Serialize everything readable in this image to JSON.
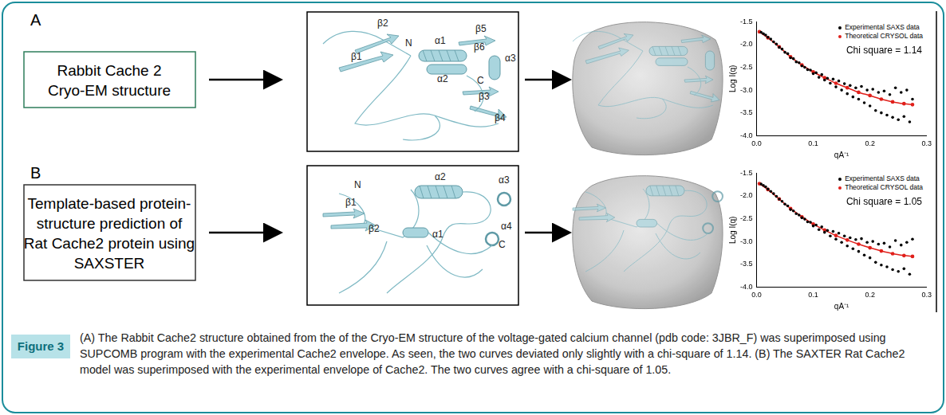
{
  "panels": [
    {
      "label": "A",
      "box_lines": [
        "Rabbit Cache 2",
        "Cryo-EM structure"
      ],
      "structure_labels": [
        "β2",
        "N",
        "β1",
        "α1",
        "β5",
        "β6",
        "α3",
        "α2",
        "C",
        "β3",
        "β4"
      ]
    },
    {
      "label": "B",
      "box_lines": [
        "Template-based protein-",
        "structure prediction of",
        "Rat Cache2 protein using",
        "SAXSTER"
      ],
      "structure_labels": [
        "N",
        "β1",
        "β2",
        "α2",
        "α1",
        "α3",
        "α4",
        "C"
      ]
    }
  ],
  "chart_data": [
    {
      "type": "scatter",
      "x_label": "qA⁻¹",
      "y_label": "Log I(q)",
      "xlim": [
        0,
        0.3
      ],
      "xticks": [
        {
          "value": 0,
          "label": "0.0"
        },
        0.1,
        0.2,
        0.3
      ],
      "ylim": [
        -4,
        -1.5
      ],
      "yticks": [
        {
          "value": -4,
          "label": "-4.0"
        },
        -3.5,
        {
          "value": -3,
          "label": "-3.0"
        },
        -2.5,
        {
          "value": -2,
          "label": "-2.0"
        },
        -1.5
      ],
      "grid": false,
      "legend": "upper right",
      "annotations": [
        "Chi square = 1.14"
      ],
      "series": [
        {
          "name": "Experimental SAXS data",
          "type": "scatter",
          "color": "#000000",
          "marker": "circle",
          "x": [
            0.008,
            0.012,
            0.016,
            0.02,
            0.025,
            0.03,
            0.035,
            0.04,
            0.045,
            0.05,
            0.055,
            0.06,
            0.065,
            0.07,
            0.075,
            0.08,
            0.085,
            0.09,
            0.095,
            0.1,
            0.105,
            0.11,
            0.115,
            0.12,
            0.125,
            0.13,
            0.135,
            0.14,
            0.145,
            0.15,
            0.155,
            0.16,
            0.165,
            0.17,
            0.175,
            0.18,
            0.185,
            0.19,
            0.195,
            0.2,
            0.205,
            0.21,
            0.215,
            0.22,
            0.225,
            0.23,
            0.235,
            0.24,
            0.245,
            0.25,
            0.255,
            0.26,
            0.265,
            0.27,
            0.275
          ],
          "values": [
            -1.73,
            -1.76,
            -1.79,
            -1.84,
            -1.88,
            -1.94,
            -1.99,
            -2.06,
            -2.1,
            -2.17,
            -2.2,
            -2.29,
            -2.31,
            -2.38,
            -2.4,
            -2.47,
            -2.5,
            -2.55,
            -2.56,
            -2.64,
            -2.62,
            -2.72,
            -2.66,
            -2.78,
            -2.74,
            -2.85,
            -2.76,
            -2.93,
            -2.8,
            -3.0,
            -2.86,
            -3.08,
            -2.9,
            -3.15,
            -2.95,
            -3.2,
            -2.92,
            -3.28,
            -3.0,
            -3.35,
            -2.98,
            -3.45,
            -3.05,
            -3.5,
            -3.02,
            -3.55,
            -3.1,
            -3.6,
            -2.95,
            -3.65,
            -3.05,
            -3.58,
            -3.0,
            -3.7,
            -3.2
          ]
        },
        {
          "name": "Theoretical CRYSOL data",
          "type": "line",
          "color": "#e0201b",
          "marker": "circle",
          "line_style": "solid",
          "x": [
            0.005,
            0.02,
            0.04,
            0.06,
            0.08,
            0.1,
            0.12,
            0.14,
            0.16,
            0.18,
            0.2,
            0.22,
            0.24,
            0.26,
            0.275
          ],
          "values": [
            -1.72,
            -1.85,
            -2.05,
            -2.27,
            -2.45,
            -2.6,
            -2.73,
            -2.85,
            -2.95,
            -3.05,
            -3.12,
            -3.2,
            -3.26,
            -3.3,
            -3.32
          ]
        }
      ]
    },
    {
      "type": "scatter",
      "x_label": "qA⁻¹",
      "y_label": "Log I(q)",
      "xlim": [
        0,
        0.3
      ],
      "xticks": [
        {
          "value": 0,
          "label": "0.0"
        },
        0.1,
        0.2,
        0.3
      ],
      "ylim": [
        -4,
        -1.5
      ],
      "yticks": [
        {
          "value": -4,
          "label": "-4.0"
        },
        -3.5,
        {
          "value": -3,
          "label": "-3.0"
        },
        -2.5,
        {
          "value": -2,
          "label": "-2.0"
        },
        -1.5
      ],
      "grid": false,
      "legend": "upper right",
      "annotations": [
        "Chi square = 1.05"
      ],
      "series": [
        {
          "name": "Experimental SAXS data",
          "type": "scatter",
          "color": "#000000",
          "marker": "circle",
          "x": [
            0.008,
            0.012,
            0.016,
            0.02,
            0.025,
            0.03,
            0.035,
            0.04,
            0.045,
            0.05,
            0.055,
            0.06,
            0.065,
            0.07,
            0.075,
            0.08,
            0.085,
            0.09,
            0.095,
            0.1,
            0.105,
            0.11,
            0.115,
            0.12,
            0.125,
            0.13,
            0.135,
            0.14,
            0.145,
            0.15,
            0.155,
            0.16,
            0.165,
            0.17,
            0.175,
            0.18,
            0.185,
            0.19,
            0.195,
            0.2,
            0.205,
            0.21,
            0.215,
            0.22,
            0.225,
            0.23,
            0.235,
            0.24,
            0.245,
            0.25,
            0.255,
            0.26,
            0.265,
            0.27,
            0.275
          ],
          "values": [
            -1.74,
            -1.77,
            -1.8,
            -1.85,
            -1.9,
            -1.95,
            -2.01,
            -2.07,
            -2.12,
            -2.18,
            -2.22,
            -2.3,
            -2.33,
            -2.39,
            -2.42,
            -2.48,
            -2.51,
            -2.57,
            -2.58,
            -2.66,
            -2.64,
            -2.74,
            -2.68,
            -2.8,
            -2.76,
            -2.88,
            -2.78,
            -2.95,
            -2.82,
            -3.02,
            -2.88,
            -3.1,
            -2.92,
            -3.16,
            -2.96,
            -3.22,
            -2.94,
            -3.3,
            -3.02,
            -3.36,
            -3.0,
            -3.46,
            -3.06,
            -3.52,
            -3.04,
            -3.56,
            -3.12,
            -3.62,
            -2.98,
            -3.66,
            -3.08,
            -3.6,
            -3.02,
            -3.72,
            -2.95
          ]
        },
        {
          "name": "Theoretical CRYSOL data",
          "type": "line",
          "color": "#e0201b",
          "marker": "circle",
          "line_style": "solid",
          "x": [
            0.005,
            0.02,
            0.04,
            0.06,
            0.08,
            0.1,
            0.12,
            0.14,
            0.16,
            0.18,
            0.2,
            0.22,
            0.24,
            0.26,
            0.275
          ],
          "values": [
            -1.73,
            -1.86,
            -2.07,
            -2.28,
            -2.46,
            -2.62,
            -2.75,
            -2.87,
            -2.97,
            -3.06,
            -3.14,
            -3.21,
            -3.27,
            -3.31,
            -3.33
          ]
        }
      ]
    }
  ],
  "caption": {
    "label": "Figure 3",
    "text": "(A) The Rabbit Cache2 structure obtained from the of the Cryo-EM structure of the voltage-gated calcium channel (pdb code: 3JBR_F) was superimposed using SUPCOMB program with the experimental Cache2 envelope. As seen, the two curves deviated only slightly with a chi-square of 1.14. (B) The SAXTER Rat Cache2 model was superimposed with the experimental envelope of Cache2. The two curves agree with a chi-square of 1.05."
  }
}
